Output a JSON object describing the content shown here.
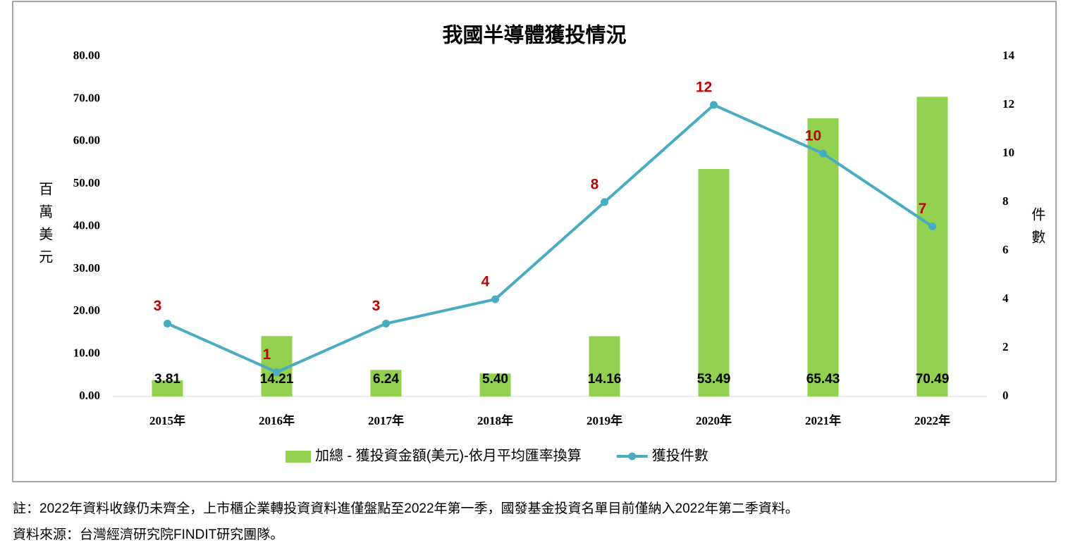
{
  "chart_data": {
    "type": "bar",
    "title": "我國半導體獲投情況",
    "categories": [
      "2015年",
      "2016年",
      "2017年",
      "2018年",
      "2019年",
      "2020年",
      "2021年",
      "2022年"
    ],
    "series": [
      {
        "name": "加總 - 獲投資金額(美元)-依月平均匯率換算",
        "type": "bar",
        "color": "#92d050",
        "values": [
          3.81,
          14.21,
          6.24,
          5.4,
          14.16,
          53.49,
          65.43,
          70.49
        ],
        "value_labels": [
          "3.81",
          "14.21",
          "6.24",
          "5.40",
          "14.16",
          "53.49",
          "65.43",
          "70.49"
        ]
      },
      {
        "name": "獲投件數",
        "type": "line",
        "axis": "y2",
        "color": "#4aacc0",
        "label_color": "#c00000",
        "values": [
          3,
          1,
          3,
          4,
          8,
          12,
          10,
          7
        ]
      }
    ],
    "ylabel": "百萬美元",
    "y2label": "件數",
    "ylim": [
      0,
      80
    ],
    "yticks": [
      {
        "value": 0,
        "label": "0.00"
      },
      {
        "value": 10,
        "label": "10.00"
      },
      {
        "value": 20,
        "label": "20.00"
      },
      {
        "value": 30,
        "label": "30.00"
      },
      {
        "value": 40,
        "label": "40.00"
      },
      {
        "value": 50,
        "label": "50.00"
      },
      {
        "value": 60,
        "label": "60.00"
      },
      {
        "value": 70,
        "label": "70.00"
      },
      {
        "value": 80,
        "label": "80.00"
      }
    ],
    "y2lim": [
      0,
      14
    ],
    "y2ticks": [
      0,
      2,
      4,
      6,
      8,
      10,
      12,
      14
    ],
    "grid": false,
    "legend": "bottom"
  },
  "notes": [
    "註：2022年資料收錄仍未齊全，上市櫃企業轉投資資料進僅盤點至2022年第一季，國發基金投資名單目前僅納入2022年第二季資料。",
    "資料來源：台灣經濟研究院FINDIT研究團隊。"
  ]
}
